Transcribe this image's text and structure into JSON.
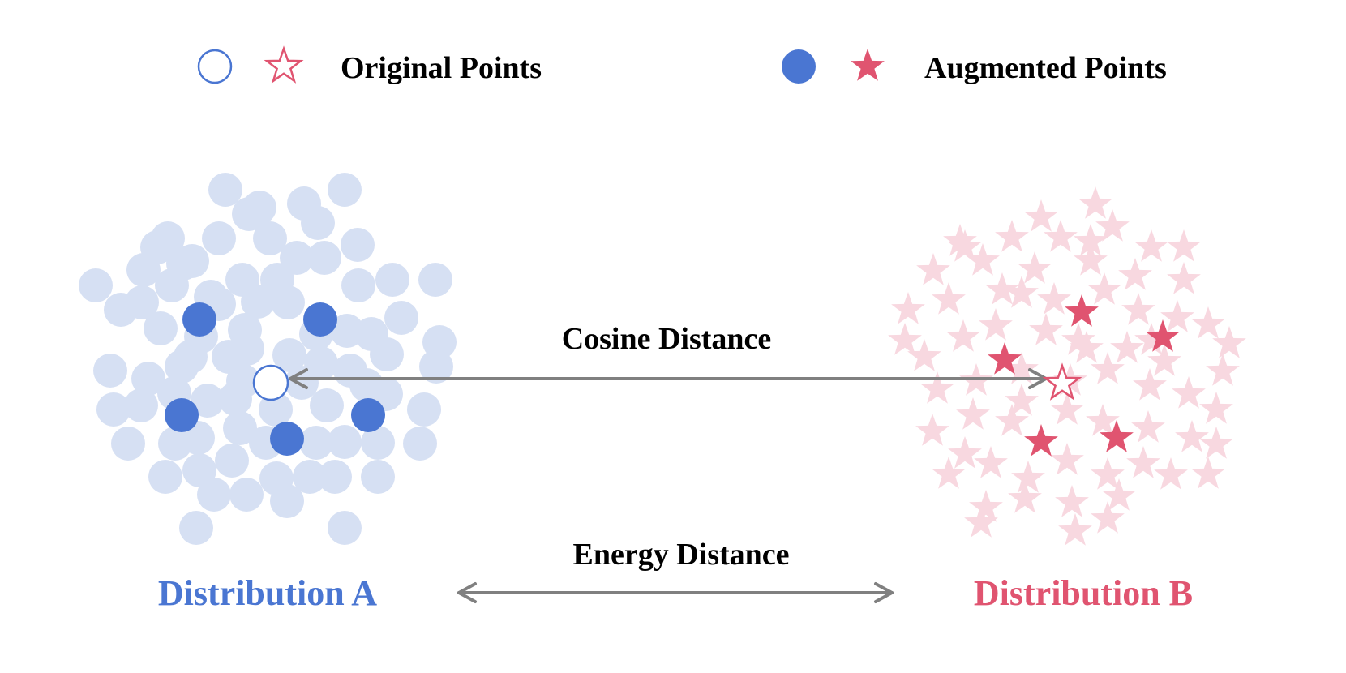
{
  "legend": {
    "original_label": "Original Points",
    "augmented_label": "Augmented Points"
  },
  "labels": {
    "cosine_distance": "Cosine Distance",
    "energy_distance": "Energy Distance",
    "distribution_a": "Distribution A",
    "distribution_b": "Distribution B"
  },
  "colors": {
    "blue": "#4a76d2",
    "blue_light": "#d6e0f3",
    "red": "#e05470",
    "red_light": "#f8d8e0",
    "arrow": "#808080",
    "text": "#000000"
  }
}
